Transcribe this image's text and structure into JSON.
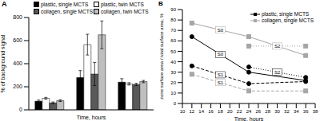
{
  "chart_data": [
    {
      "type": "bar",
      "title": "A",
      "x_label": "Time, hours",
      "y_label": "% of background signal",
      "categories": [
        null,
        null,
        null
      ],
      "ylim": [
        0,
        800
      ],
      "yticks": [
        0,
        200,
        400,
        600,
        800
      ],
      "tick_labels": "y",
      "legend": "upper left",
      "series": [
        {
          "name": "plastic, single MCTS",
          "color": "#000000",
          "values": [
            75,
            280,
            240
          ],
          "errors": [
            10,
            60,
            30
          ]
        },
        {
          "name": "plastic, twin MCTS",
          "color": "#ffffff",
          "values": [
            100,
            565,
            225
          ],
          "errors": [
            8,
            90,
            10
          ]
        },
        {
          "name": "collagen, single MCTS",
          "color": "#595959",
          "values": [
            60,
            310,
            220
          ],
          "errors": [
            8,
            100,
            10
          ]
        },
        {
          "name": "collagen, twin MCTS",
          "color": "#bfbfbf",
          "values": [
            80,
            650,
            245
          ],
          "errors": [
            8,
            120,
            10
          ]
        }
      ]
    },
    {
      "type": "line",
      "title": "B",
      "x_label": "Time, hours",
      "y_label": "zone surface area / total surface area, %",
      "x": [
        12,
        24,
        36
      ],
      "xlim": [
        10,
        38
      ],
      "xticks": [
        10,
        12,
        14,
        16,
        18,
        20,
        22,
        24,
        26,
        28,
        30,
        32,
        34,
        36,
        38
      ],
      "ylim": [
        0,
        90
      ],
      "yticks": [
        0,
        10,
        20,
        30,
        40,
        50,
        60,
        70,
        80,
        90
      ],
      "legend": "upper right",
      "series": [
        {
          "name": "plastic, single MCTS",
          "label": "S0",
          "color": "#000000",
          "marker": "circle",
          "line_style": "solid",
          "values": [
            64,
            30,
            22
          ]
        },
        {
          "name": "plastic, single MCTS",
          "label": "S1",
          "color": "#000000",
          "marker": "circle",
          "line_style": "dashed",
          "values": [
            36,
            19,
            21
          ]
        },
        {
          "name": "plastic, single MCTS",
          "label": "S2",
          "color": "#000000",
          "marker": "circle",
          "line_style": "dotted",
          "values": [
            null,
            35,
            25
          ]
        },
        {
          "name": "collagen, single MCTS",
          "label": "S0",
          "color": "#a6a6a6",
          "marker": "square",
          "line_style": "solid",
          "values": [
            77,
            64,
            46
          ]
        },
        {
          "name": "collagen, single MCTS",
          "label": "S1",
          "color": "#a6a6a6",
          "marker": "square",
          "line_style": "dashed",
          "values": [
            28,
            12,
            12
          ]
        },
        {
          "name": "collagen, single MCTS",
          "label": "S2",
          "color": "#a6a6a6",
          "marker": "square",
          "line_style": "dotted",
          "values": [
            null,
            55,
            55
          ]
        }
      ]
    }
  ]
}
